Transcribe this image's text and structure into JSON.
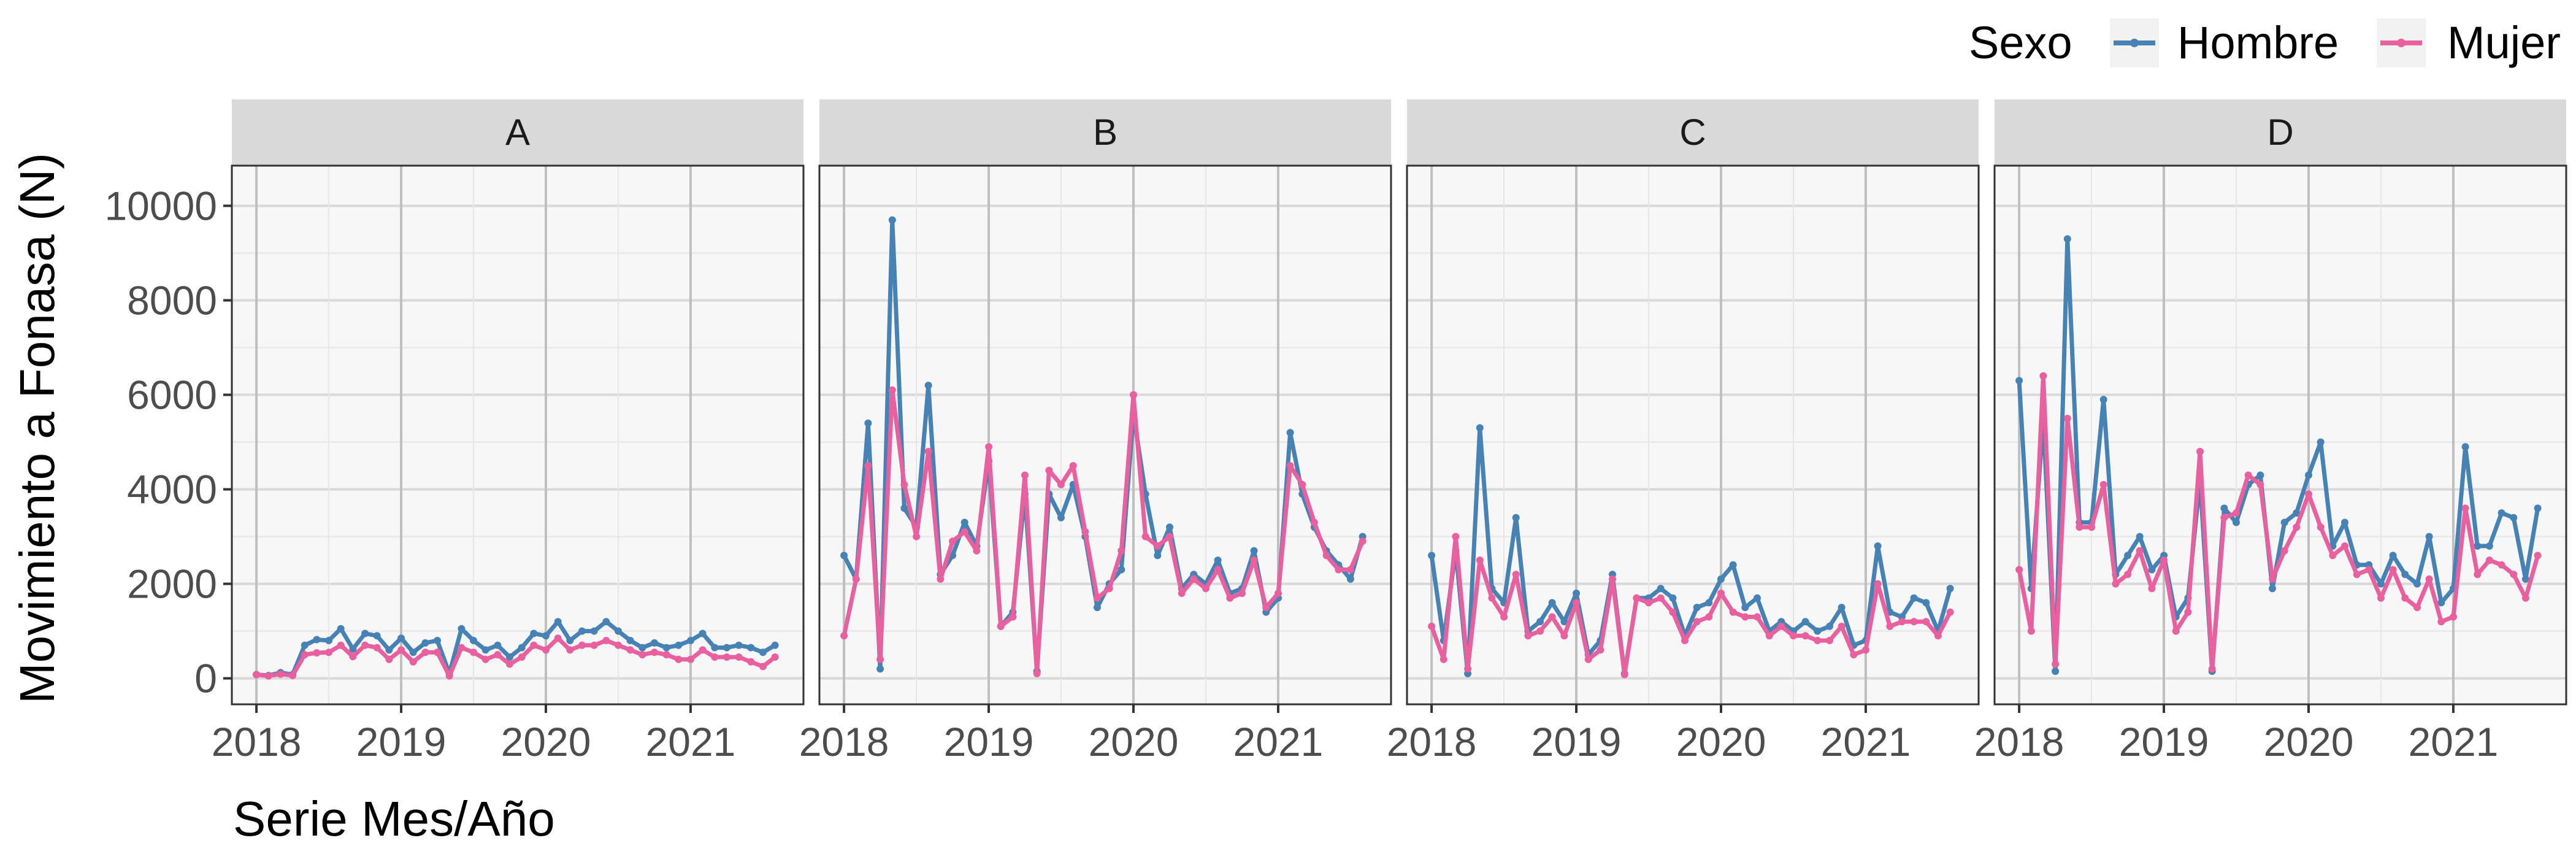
{
  "chart_data": {
    "type": "line",
    "facet_titles": [
      "A",
      "B",
      "C",
      "D"
    ],
    "xlabel": "Serie Mes/Año",
    "ylabel": "Movimiento a Fonasa (N)",
    "x_ticks": [
      2018,
      2019,
      2020,
      2021
    ],
    "x_tick_labels": [
      "2018",
      "2019",
      "2020",
      "2021"
    ],
    "y_ticks": [
      0,
      2000,
      4000,
      6000,
      8000,
      10000
    ],
    "y_tick_labels": [
      "0",
      "2000",
      "4000",
      "6000",
      "8000",
      "10000"
    ],
    "xlim": [
      2017.83,
      2021.78
    ],
    "ylim": [
      -550,
      10850
    ],
    "grid": true,
    "legend": {
      "title": "Sexo",
      "position": "top-right",
      "entries": [
        "Hombre",
        "Mujer"
      ]
    },
    "colors": {
      "Hombre": "#4682b4",
      "Mujer": "#e8609e",
      "panel_bg": "#f7f7f7",
      "strip_bg": "#d9d9d9",
      "grid": "#dddddd",
      "axis_text": "#4d4d4d"
    },
    "x_start": "2018-01",
    "x_step": "month",
    "panels": [
      {
        "name": "A",
        "series": [
          {
            "name": "Hombre",
            "values": [
              80,
              60,
              120,
              80,
              700,
              820,
              800,
              1050,
              620,
              950,
              900,
              600,
              850,
              550,
              750,
              800,
              100,
              1050,
              800,
              600,
              700,
              450,
              650,
              950,
              900,
              1200,
              800,
              1000,
              1000,
              1200,
              1000,
              800,
              650,
              750,
              650,
              700,
              800,
              950,
              650,
              650,
              700,
              650,
              550,
              700
            ]
          },
          {
            "name": "Mujer",
            "values": [
              80,
              50,
              90,
              60,
              500,
              540,
              550,
              700,
              460,
              700,
              650,
              400,
              600,
              350,
              550,
              550,
              50,
              650,
              550,
              400,
              500,
              300,
              450,
              700,
              600,
              850,
              600,
              700,
              700,
              800,
              700,
              600,
              500,
              550,
              500,
              400,
              400,
              600,
              450,
              450,
              450,
              350,
              250,
              450
            ]
          }
        ]
      },
      {
        "name": "B",
        "series": [
          {
            "name": "Hombre",
            "values": [
              2600,
              2100,
              5400,
              200,
              9700,
              3600,
              3200,
              6200,
              2200,
              2600,
              3300,
              2800,
              4600,
              1100,
              1400,
              3900,
              150,
              3900,
              3400,
              4100,
              3000,
              1500,
              2000,
              2300,
              5600,
              3900,
              2600,
              3200,
              1900,
              2200,
              2000,
              2500,
              1800,
              1900,
              2700,
              1400,
              1700,
              5200,
              3900,
              3200,
              2700,
              2400,
              2100,
              3000
            ]
          },
          {
            "name": "Mujer",
            "values": [
              900,
              2100,
              4500,
              400,
              6100,
              4100,
              3000,
              4800,
              2100,
              2900,
              3100,
              2700,
              4900,
              1100,
              1300,
              4300,
              100,
              4400,
              4100,
              4500,
              3100,
              1700,
              1900,
              2700,
              6000,
              3000,
              2800,
              3000,
              1800,
              2100,
              1900,
              2300,
              1700,
              1800,
              2500,
              1500,
              1800,
              4500,
              4100,
              3300,
              2600,
              2300,
              2300,
              2900
            ]
          }
        ]
      },
      {
        "name": "C",
        "series": [
          {
            "name": "Hombre",
            "values": [
              2600,
              800,
              2700,
              100,
              5300,
              1900,
              1600,
              3400,
              1000,
              1200,
              1600,
              1200,
              1800,
              500,
              800,
              2200,
              100,
              1700,
              1700,
              1900,
              1700,
              900,
              1500,
              1600,
              2100,
              2400,
              1500,
              1700,
              1000,
              1200,
              1000,
              1200,
              1000,
              1100,
              1500,
              700,
              800,
              2800,
              1400,
              1300,
              1700,
              1600,
              1000,
              1900
            ]
          },
          {
            "name": "Mujer",
            "values": [
              1100,
              400,
              3000,
              200,
              2500,
              1700,
              1300,
              2200,
              900,
              1000,
              1300,
              900,
              1600,
              400,
              600,
              2100,
              80,
              1700,
              1600,
              1700,
              1400,
              800,
              1200,
              1300,
              1800,
              1400,
              1300,
              1300,
              900,
              1100,
              900,
              900,
              800,
              800,
              1100,
              500,
              600,
              2000,
              1100,
              1200,
              1200,
              1200,
              900,
              1400
            ]
          }
        ]
      },
      {
        "name": "D",
        "series": [
          {
            "name": "Hombre",
            "values": [
              6300,
              1900,
              5500,
              150,
              9300,
              3300,
              3300,
              5900,
              2200,
              2600,
              3000,
              2300,
              2600,
              1300,
              1700,
              4200,
              150,
              3600,
              3300,
              4100,
              4300,
              1900,
              3300,
              3500,
              4300,
              5000,
              2800,
              3300,
              2400,
              2400,
              2000,
              2600,
              2200,
              2000,
              3000,
              1600,
              1900,
              4900,
              2800,
              2800,
              3500,
              3400,
              2100,
              3600
            ]
          },
          {
            "name": "Mujer",
            "values": [
              2300,
              1000,
              6400,
              300,
              5500,
              3200,
              3200,
              4100,
              2000,
              2200,
              2700,
              1900,
              2500,
              1000,
              1400,
              4800,
              200,
              3400,
              3500,
              4300,
              4100,
              2100,
              2700,
              3200,
              3900,
              3200,
              2600,
              2800,
              2200,
              2300,
              1700,
              2300,
              1700,
              1500,
              2100,
              1200,
              1300,
              3600,
              2200,
              2500,
              2400,
              2200,
              1700,
              2600
            ]
          }
        ]
      }
    ]
  }
}
